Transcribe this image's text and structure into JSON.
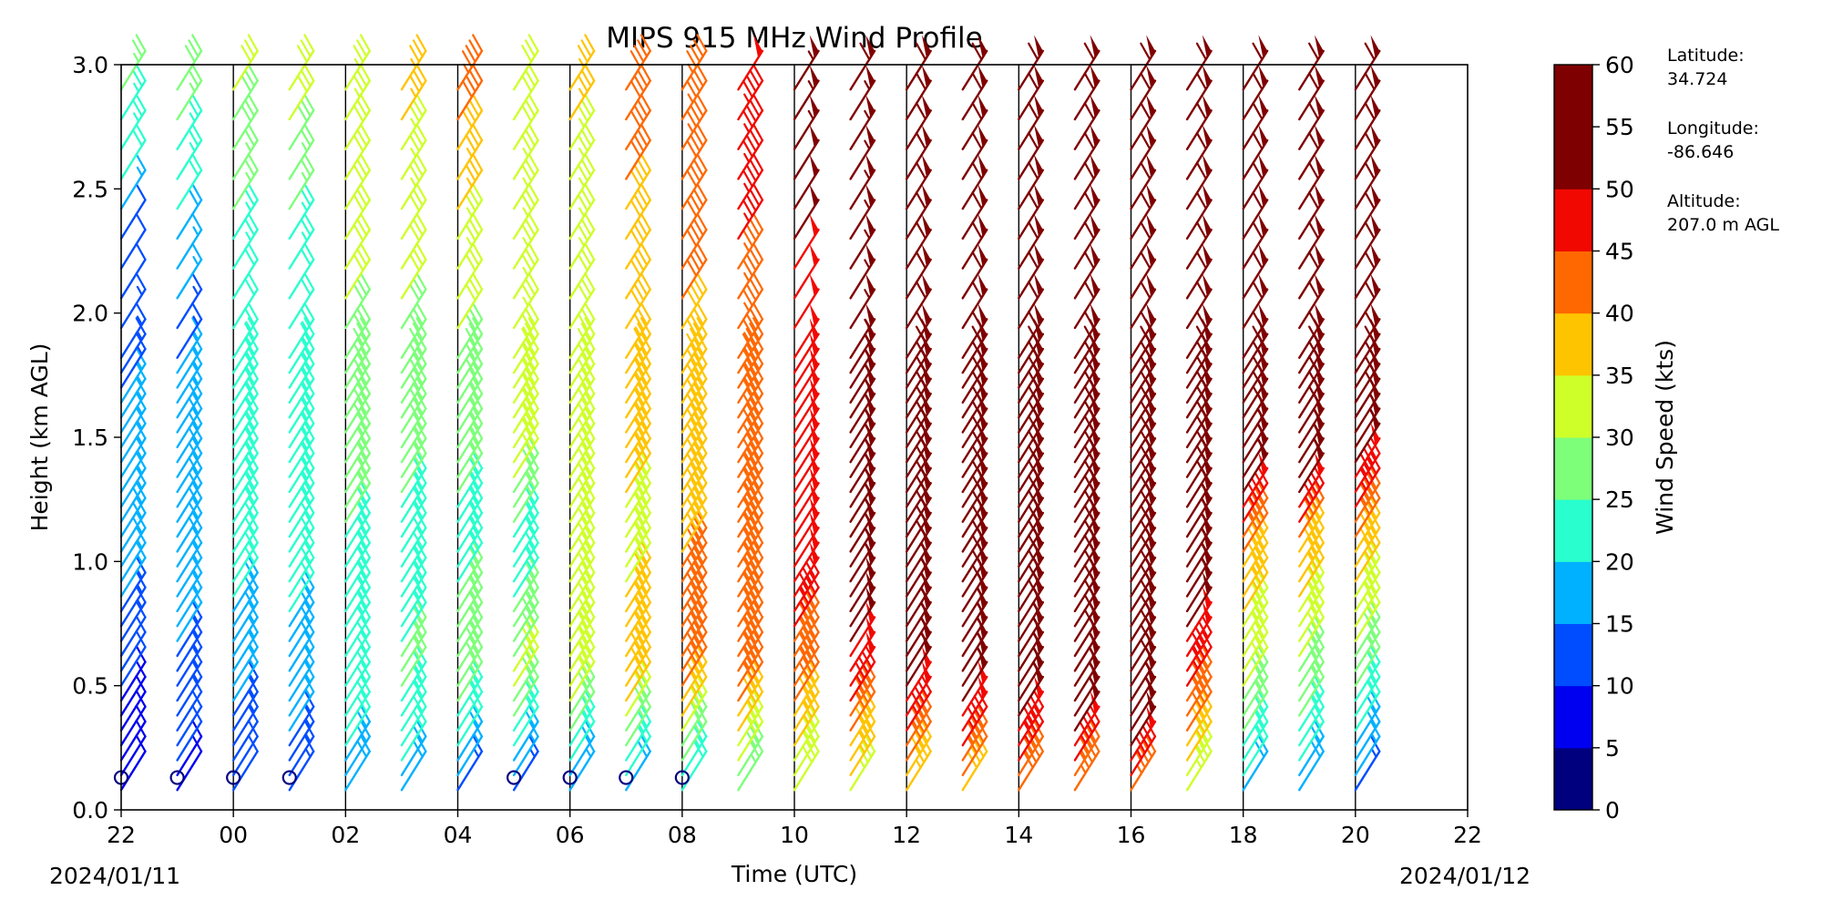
{
  "chart_data": {
    "type": "wind_barb_time_height",
    "title": "MIPS 915 MHz Wind Profile",
    "xlabel": "Time (UTC)",
    "ylabel": "Height (km AGL)",
    "x_ticks": [
      "22",
      "00",
      "02",
      "04",
      "06",
      "08",
      "10",
      "12",
      "14",
      "16",
      "18",
      "20",
      "22"
    ],
    "x_tick_hours": [
      22,
      24,
      26,
      28,
      30,
      32,
      34,
      36,
      38,
      40,
      42,
      44,
      46
    ],
    "xlim_hours": [
      22,
      46
    ],
    "date_start": "2024/01/11",
    "date_end": "2024/01/12",
    "y_ticks": [
      "0.0",
      "0.5",
      "1.0",
      "1.5",
      "2.0",
      "2.5",
      "3.0"
    ],
    "ylim": [
      0.0,
      3.0
    ],
    "vertical_lines_hours": [
      24,
      26,
      28,
      30,
      32,
      34,
      36,
      38,
      40,
      42,
      44
    ],
    "colorbar": {
      "label": "Wind Speed (kts)",
      "ticks": [
        "0",
        "5",
        "10",
        "15",
        "20",
        "25",
        "30",
        "35",
        "40",
        "45",
        "50",
        "55",
        "60"
      ],
      "range": [
        0,
        60
      ],
      "colors": [
        "#00007f",
        "#0000f1",
        "#004dff",
        "#00b1ff",
        "#29ffce",
        "#7dff7a",
        "#ceff29",
        "#ffc400",
        "#ff6800",
        "#f10800",
        "#7f0000",
        "#7f0000"
      ]
    },
    "series": [
      {
        "time_hours": 22.0,
        "max_height_km": 3.0,
        "speed_profile": [
          [
            0,
            8
          ],
          [
            0.5,
            10
          ],
          [
            1.0,
            18
          ],
          [
            1.6,
            16
          ],
          [
            2.0,
            12
          ],
          [
            2.3,
            12
          ],
          [
            2.5,
            20
          ],
          [
            3.0,
            28
          ]
        ]
      },
      {
        "time_hours": 23.0,
        "max_height_km": 3.0,
        "speed_profile": [
          [
            0,
            8
          ],
          [
            0.5,
            14
          ],
          [
            1.0,
            18
          ],
          [
            1.5,
            18
          ],
          [
            1.9,
            14
          ],
          [
            2.3,
            18
          ],
          [
            2.6,
            24
          ],
          [
            3.0,
            30
          ]
        ]
      },
      {
        "time_hours": 24.0,
        "max_height_km": 2.9,
        "speed_profile": [
          [
            0,
            10
          ],
          [
            0.5,
            16
          ],
          [
            1.0,
            22
          ],
          [
            1.5,
            24
          ],
          [
            2.0,
            22
          ],
          [
            2.5,
            26
          ],
          [
            2.9,
            30
          ]
        ]
      },
      {
        "time_hours": 25.0,
        "max_height_km": 2.9,
        "speed_profile": [
          [
            0,
            12
          ],
          [
            0.5,
            17
          ],
          [
            1.0,
            22
          ],
          [
            1.5,
            24
          ],
          [
            2.0,
            22
          ],
          [
            2.5,
            26
          ],
          [
            2.9,
            32
          ]
        ]
      },
      {
        "time_hours": 26.0,
        "max_height_km": 2.9,
        "speed_profile": [
          [
            0,
            18
          ],
          [
            0.5,
            22
          ],
          [
            1.0,
            24
          ],
          [
            1.5,
            28
          ],
          [
            2.0,
            30
          ],
          [
            2.5,
            32
          ],
          [
            2.9,
            33
          ]
        ]
      },
      {
        "time_hours": 27.0,
        "max_height_km": 2.9,
        "speed_profile": [
          [
            0,
            16
          ],
          [
            0.5,
            26
          ],
          [
            1.0,
            22
          ],
          [
            1.5,
            28
          ],
          [
            2.0,
            30
          ],
          [
            2.5,
            34
          ],
          [
            2.9,
            36
          ]
        ]
      },
      {
        "time_hours": 28.0,
        "max_height_km": 2.9,
        "speed_profile": [
          [
            0,
            12
          ],
          [
            0.5,
            28
          ],
          [
            1.0,
            24
          ],
          [
            1.5,
            26
          ],
          [
            2.0,
            32
          ],
          [
            2.5,
            36
          ],
          [
            2.9,
            44
          ]
        ]
      },
      {
        "time_hours": 29.0,
        "max_height_km": 2.9,
        "speed_profile": [
          [
            0,
            10
          ],
          [
            0.5,
            32
          ],
          [
            1.0,
            22
          ],
          [
            1.5,
            34
          ],
          [
            2.0,
            34
          ],
          [
            2.5,
            34
          ],
          [
            2.9,
            30
          ]
        ]
      },
      {
        "time_hours": 30.0,
        "max_height_km": 2.9,
        "speed_profile": [
          [
            0,
            12
          ],
          [
            0.5,
            34
          ],
          [
            1.0,
            30
          ],
          [
            1.5,
            32
          ],
          [
            2.0,
            32
          ],
          [
            2.5,
            34
          ],
          [
            2.9,
            36
          ]
        ]
      },
      {
        "time_hours": 31.0,
        "max_height_km": 2.9,
        "speed_profile": [
          [
            0,
            14
          ],
          [
            0.5,
            38
          ],
          [
            1.0,
            34
          ],
          [
            1.5,
            36
          ],
          [
            2.0,
            38
          ],
          [
            2.5,
            40
          ],
          [
            2.9,
            42
          ]
        ]
      },
      {
        "time_hours": 32.0,
        "max_height_km": 2.9,
        "speed_profile": [
          [
            0,
            16
          ],
          [
            0.5,
            42
          ],
          [
            1.0,
            40
          ],
          [
            1.5,
            38
          ],
          [
            2.0,
            40
          ],
          [
            2.5,
            42
          ],
          [
            2.9,
            44
          ]
        ]
      },
      {
        "time_hours": 33.0,
        "max_height_km": 2.9,
        "speed_profile": [
          [
            0,
            22
          ],
          [
            0.5,
            44
          ],
          [
            1.0,
            44
          ],
          [
            1.5,
            42
          ],
          [
            2.0,
            44
          ],
          [
            2.5,
            46
          ],
          [
            2.9,
            48
          ]
        ]
      },
      {
        "time_hours": 34.0,
        "max_height_km": 2.9,
        "speed_profile": [
          [
            0,
            28
          ],
          [
            0.5,
            42
          ],
          [
            1.0,
            50
          ],
          [
            1.5,
            48
          ],
          [
            2.0,
            48
          ],
          [
            2.5,
            52
          ],
          [
            2.9,
            56
          ]
        ]
      },
      {
        "time_hours": 35.0,
        "max_height_km": 2.9,
        "speed_profile": [
          [
            0,
            30
          ],
          [
            0.5,
            48
          ],
          [
            1.0,
            54
          ],
          [
            1.5,
            54
          ],
          [
            2.0,
            54
          ],
          [
            2.5,
            56
          ],
          [
            2.9,
            58
          ]
        ]
      },
      {
        "time_hours": 36.0,
        "max_height_km": 2.9,
        "speed_profile": [
          [
            0,
            34
          ],
          [
            0.5,
            52
          ],
          [
            1.0,
            58
          ],
          [
            1.5,
            60
          ],
          [
            2.0,
            60
          ],
          [
            2.5,
            60
          ],
          [
            2.9,
            60
          ]
        ]
      },
      {
        "time_hours": 37.0,
        "max_height_km": 2.9,
        "speed_profile": [
          [
            0,
            36
          ],
          [
            0.5,
            54
          ],
          [
            1.0,
            60
          ],
          [
            1.5,
            60
          ],
          [
            2.0,
            60
          ],
          [
            2.5,
            60
          ],
          [
            2.9,
            60
          ]
        ]
      },
      {
        "time_hours": 38.0,
        "max_height_km": 2.9,
        "speed_profile": [
          [
            0,
            38
          ],
          [
            0.5,
            56
          ],
          [
            1.0,
            60
          ],
          [
            1.5,
            60
          ],
          [
            2.0,
            60
          ],
          [
            2.5,
            60
          ],
          [
            2.9,
            60
          ]
        ]
      },
      {
        "time_hours": 39.0,
        "max_height_km": 2.9,
        "speed_profile": [
          [
            0,
            40
          ],
          [
            0.5,
            57
          ],
          [
            1.0,
            60
          ],
          [
            1.5,
            60
          ],
          [
            2.0,
            60
          ],
          [
            2.5,
            60
          ],
          [
            2.9,
            60
          ]
        ]
      },
      {
        "time_hours": 40.0,
        "max_height_km": 2.9,
        "speed_profile": [
          [
            0,
            42
          ],
          [
            0.5,
            58
          ],
          [
            1.0,
            60
          ],
          [
            1.5,
            60
          ],
          [
            2.0,
            60
          ],
          [
            2.5,
            60
          ],
          [
            2.9,
            60
          ]
        ]
      },
      {
        "time_hours": 41.0,
        "max_height_km": 2.9,
        "speed_profile": [
          [
            0,
            30
          ],
          [
            0.5,
            46
          ],
          [
            1.0,
            56
          ],
          [
            1.5,
            60
          ],
          [
            2.0,
            60
          ],
          [
            2.5,
            60
          ],
          [
            2.9,
            60
          ]
        ]
      },
      {
        "time_hours": 42.0,
        "max_height_km": 2.9,
        "speed_profile": [
          [
            0,
            18
          ],
          [
            0.5,
            30
          ],
          [
            1.0,
            40
          ],
          [
            1.3,
            52
          ],
          [
            1.6,
            60
          ],
          [
            2.0,
            60
          ],
          [
            2.5,
            60
          ],
          [
            2.9,
            60
          ]
        ]
      },
      {
        "time_hours": 43.0,
        "max_height_km": 2.9,
        "speed_profile": [
          [
            0,
            16
          ],
          [
            0.5,
            28
          ],
          [
            1.0,
            38
          ],
          [
            1.3,
            52
          ],
          [
            1.6,
            60
          ],
          [
            2.0,
            60
          ],
          [
            2.5,
            60
          ],
          [
            2.9,
            60
          ]
        ]
      },
      {
        "time_hours": 44.0,
        "max_height_km": 2.9,
        "speed_profile": [
          [
            0,
            12
          ],
          [
            0.5,
            26
          ],
          [
            1.0,
            38
          ],
          [
            1.3,
            48
          ],
          [
            1.6,
            60
          ],
          [
            2.0,
            60
          ],
          [
            2.5,
            60
          ],
          [
            2.9,
            60
          ]
        ]
      }
    ],
    "calm_markers": [
      {
        "time_hours": 22.0,
        "height_km": 0.13
      },
      {
        "time_hours": 23.0,
        "height_km": 0.13
      },
      {
        "time_hours": 24.0,
        "height_km": 0.13
      },
      {
        "time_hours": 25.0,
        "height_km": 0.13
      },
      {
        "time_hours": 29.0,
        "height_km": 0.13
      },
      {
        "time_hours": 30.0,
        "height_km": 0.13
      },
      {
        "time_hours": 31.0,
        "height_km": 0.13
      },
      {
        "time_hours": 32.0,
        "height_km": 0.13
      }
    ]
  },
  "station_info": {
    "latitude_label": "Latitude:",
    "latitude_value": "34.724",
    "longitude_label": "Longitude:",
    "longitude_value": "-86.646",
    "altitude_label": "Altitude:",
    "altitude_value": "207.0 m AGL"
  }
}
